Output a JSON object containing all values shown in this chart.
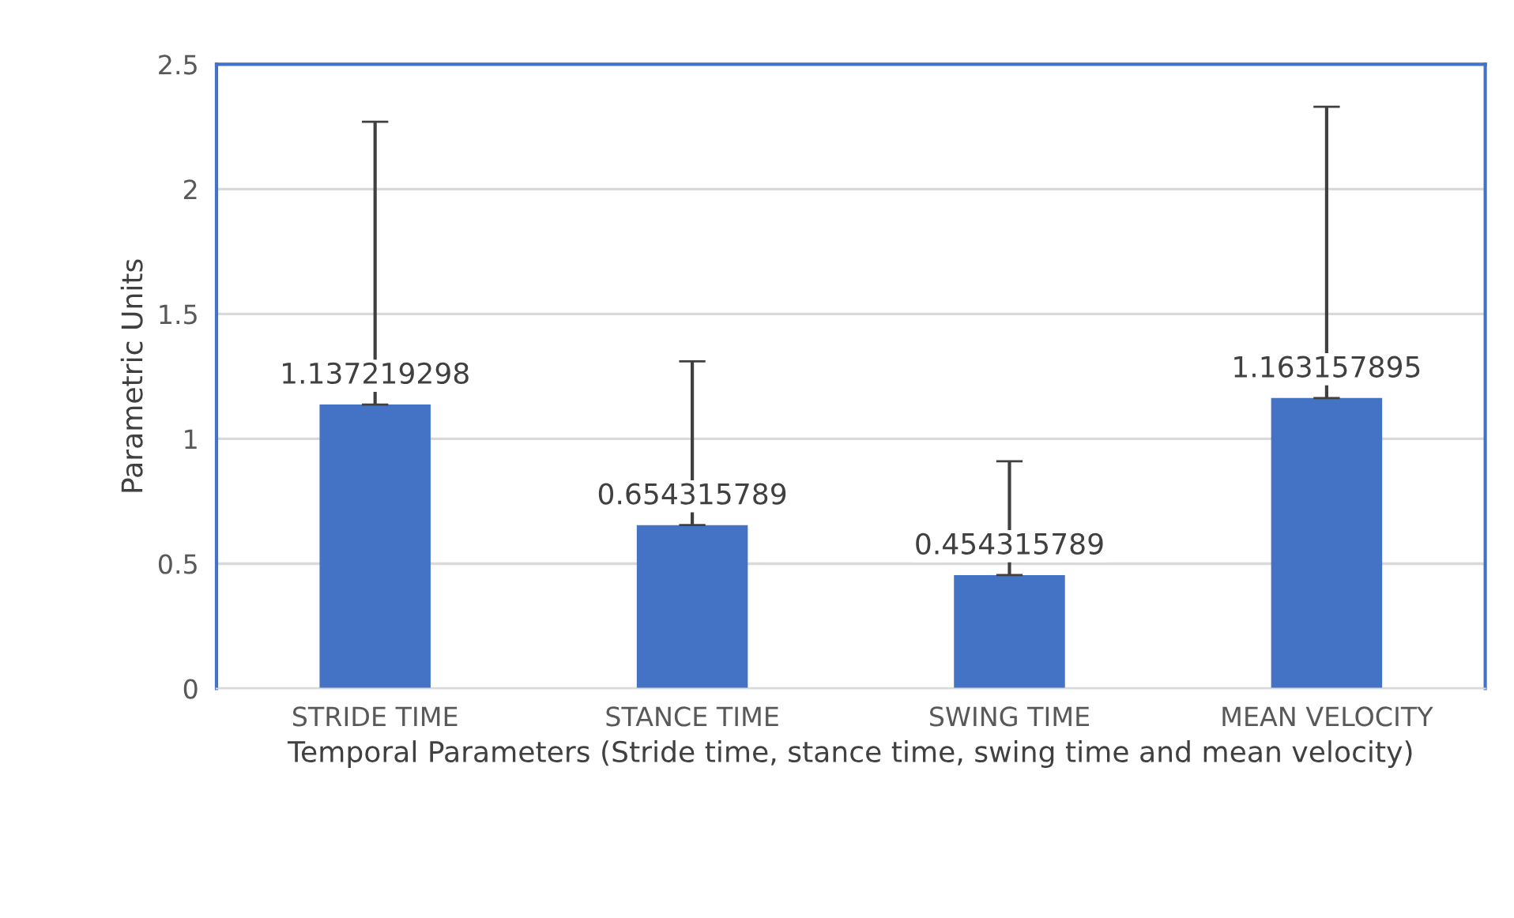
{
  "chart_data": {
    "type": "bar",
    "categories": [
      "STRIDE TIME",
      "STANCE TIME",
      "SWING TIME",
      "MEAN VELOCITY"
    ],
    "values": [
      1.137219298,
      0.654315789,
      0.454315789,
      1.163157895
    ],
    "errors": [
      [
        1.137219298,
        2.27
      ],
      [
        0.654315789,
        1.31
      ],
      [
        0.454315789,
        0.91
      ],
      [
        1.163157895,
        2.33
      ]
    ],
    "color": "#4472c4",
    "xlabel": "Temporal Parameters (Stride time, stance time, swing time and mean velocity)",
    "ylabel": "Parametric Units",
    "ylim": [
      0,
      2.5
    ],
    "yticks": [
      0,
      0.5,
      1,
      1.5,
      2,
      2.5
    ],
    "grid": "y",
    "data_labels": true
  }
}
